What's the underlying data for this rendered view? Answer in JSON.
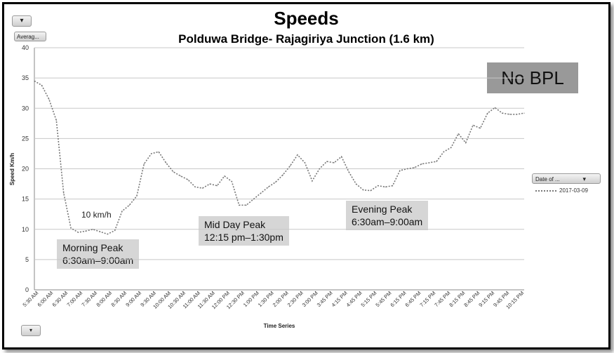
{
  "chart_data": {
    "type": "line",
    "title": "Speeds",
    "subtitle": "Polduwa Bridge- Rajagiriya Junction (1.6 km)",
    "xlabel": "Time Series",
    "ylabel": "Speed Km/h",
    "ylim": [
      0,
      40
    ],
    "yticks": [
      0,
      5,
      10,
      15,
      20,
      25,
      30,
      35,
      40
    ],
    "grid": true,
    "legend_placement": "right",
    "x_tick_labels": [
      "5:30 AM",
      "6:00 AM",
      "6:30 AM",
      "7:00 AM",
      "7:30 AM",
      "8:00 AM",
      "8:30 AM",
      "9:00 AM",
      "9:30 AM",
      "10:00 AM",
      "10:30 AM",
      "11:00 AM",
      "11:30 AM",
      "12:00 PM",
      "12:30 PM",
      "1:00 PM",
      "1:30 PM",
      "2:00 PM",
      "2:30 PM",
      "3:00 PM",
      "3:45 PM",
      "4:15 PM",
      "4:45 PM",
      "5:15 PM",
      "5:45 PM",
      "6:15 PM",
      "6:45 PM",
      "7:15 PM",
      "7:45 PM",
      "8:15 PM",
      "8:45 PM",
      "9:15 PM",
      "9:45 PM",
      "10:15 PM"
    ],
    "x_range_minutes": [
      330,
      1335
    ],
    "series": [
      {
        "name": "2017-03-09",
        "color": "#777777",
        "x_minutes": [
          330,
          345,
          360,
          375,
          390,
          405,
          420,
          435,
          450,
          465,
          480,
          495,
          510,
          525,
          540,
          555,
          570,
          585,
          600,
          615,
          630,
          645,
          660,
          675,
          690,
          705,
          720,
          735,
          750,
          765,
          780,
          795,
          810,
          825,
          840,
          855,
          870,
          885,
          900,
          915,
          930,
          945,
          960,
          975,
          990,
          1005,
          1020,
          1035,
          1050,
          1065,
          1080,
          1095,
          1110,
          1125,
          1140,
          1155,
          1170,
          1185,
          1200,
          1215,
          1230,
          1245,
          1260,
          1275,
          1290,
          1305,
          1320,
          1335
        ],
        "values": [
          34.5,
          33.8,
          31.5,
          28,
          16,
          10.2,
          9.5,
          9.7,
          10,
          9.6,
          9.2,
          9.8,
          13,
          14,
          15.5,
          20.8,
          22.5,
          22.8,
          21,
          19.5,
          18.8,
          18.2,
          17,
          16.8,
          17.5,
          17.2,
          18.8,
          17.9,
          14,
          14,
          15,
          16,
          17,
          17.8,
          19,
          20.5,
          22.3,
          21,
          18,
          20,
          21.2,
          21,
          22,
          19.5,
          17.5,
          16.5,
          16.4,
          17.2,
          17,
          17.2,
          19.7,
          20,
          20.2,
          20.8,
          21,
          21.2,
          22.8,
          23.5,
          25.8,
          24.3,
          27.2,
          26.7,
          29.2,
          30.1,
          29.2,
          29,
          29,
          29.2
        ]
      }
    ]
  },
  "ui": {
    "filter_button": "▾",
    "field_button": "Averag...",
    "expand_button": "▾",
    "legend_field_button": "Date of ...",
    "legend_funnel": "▾",
    "legend_entry": "2017-03-09"
  },
  "annotations": {
    "no_bpl": "No BPL",
    "low_speed_note": "10 km/h",
    "morning_peak": {
      "title": "Morning Peak",
      "time": "6:30am–9:00am"
    },
    "midday_peak": {
      "title": "Mid Day Peak",
      "time": "12:15 pm–1:30pm"
    },
    "evening_peak": {
      "title": "Evening Peak",
      "time": "6:30am–9:00am"
    }
  }
}
